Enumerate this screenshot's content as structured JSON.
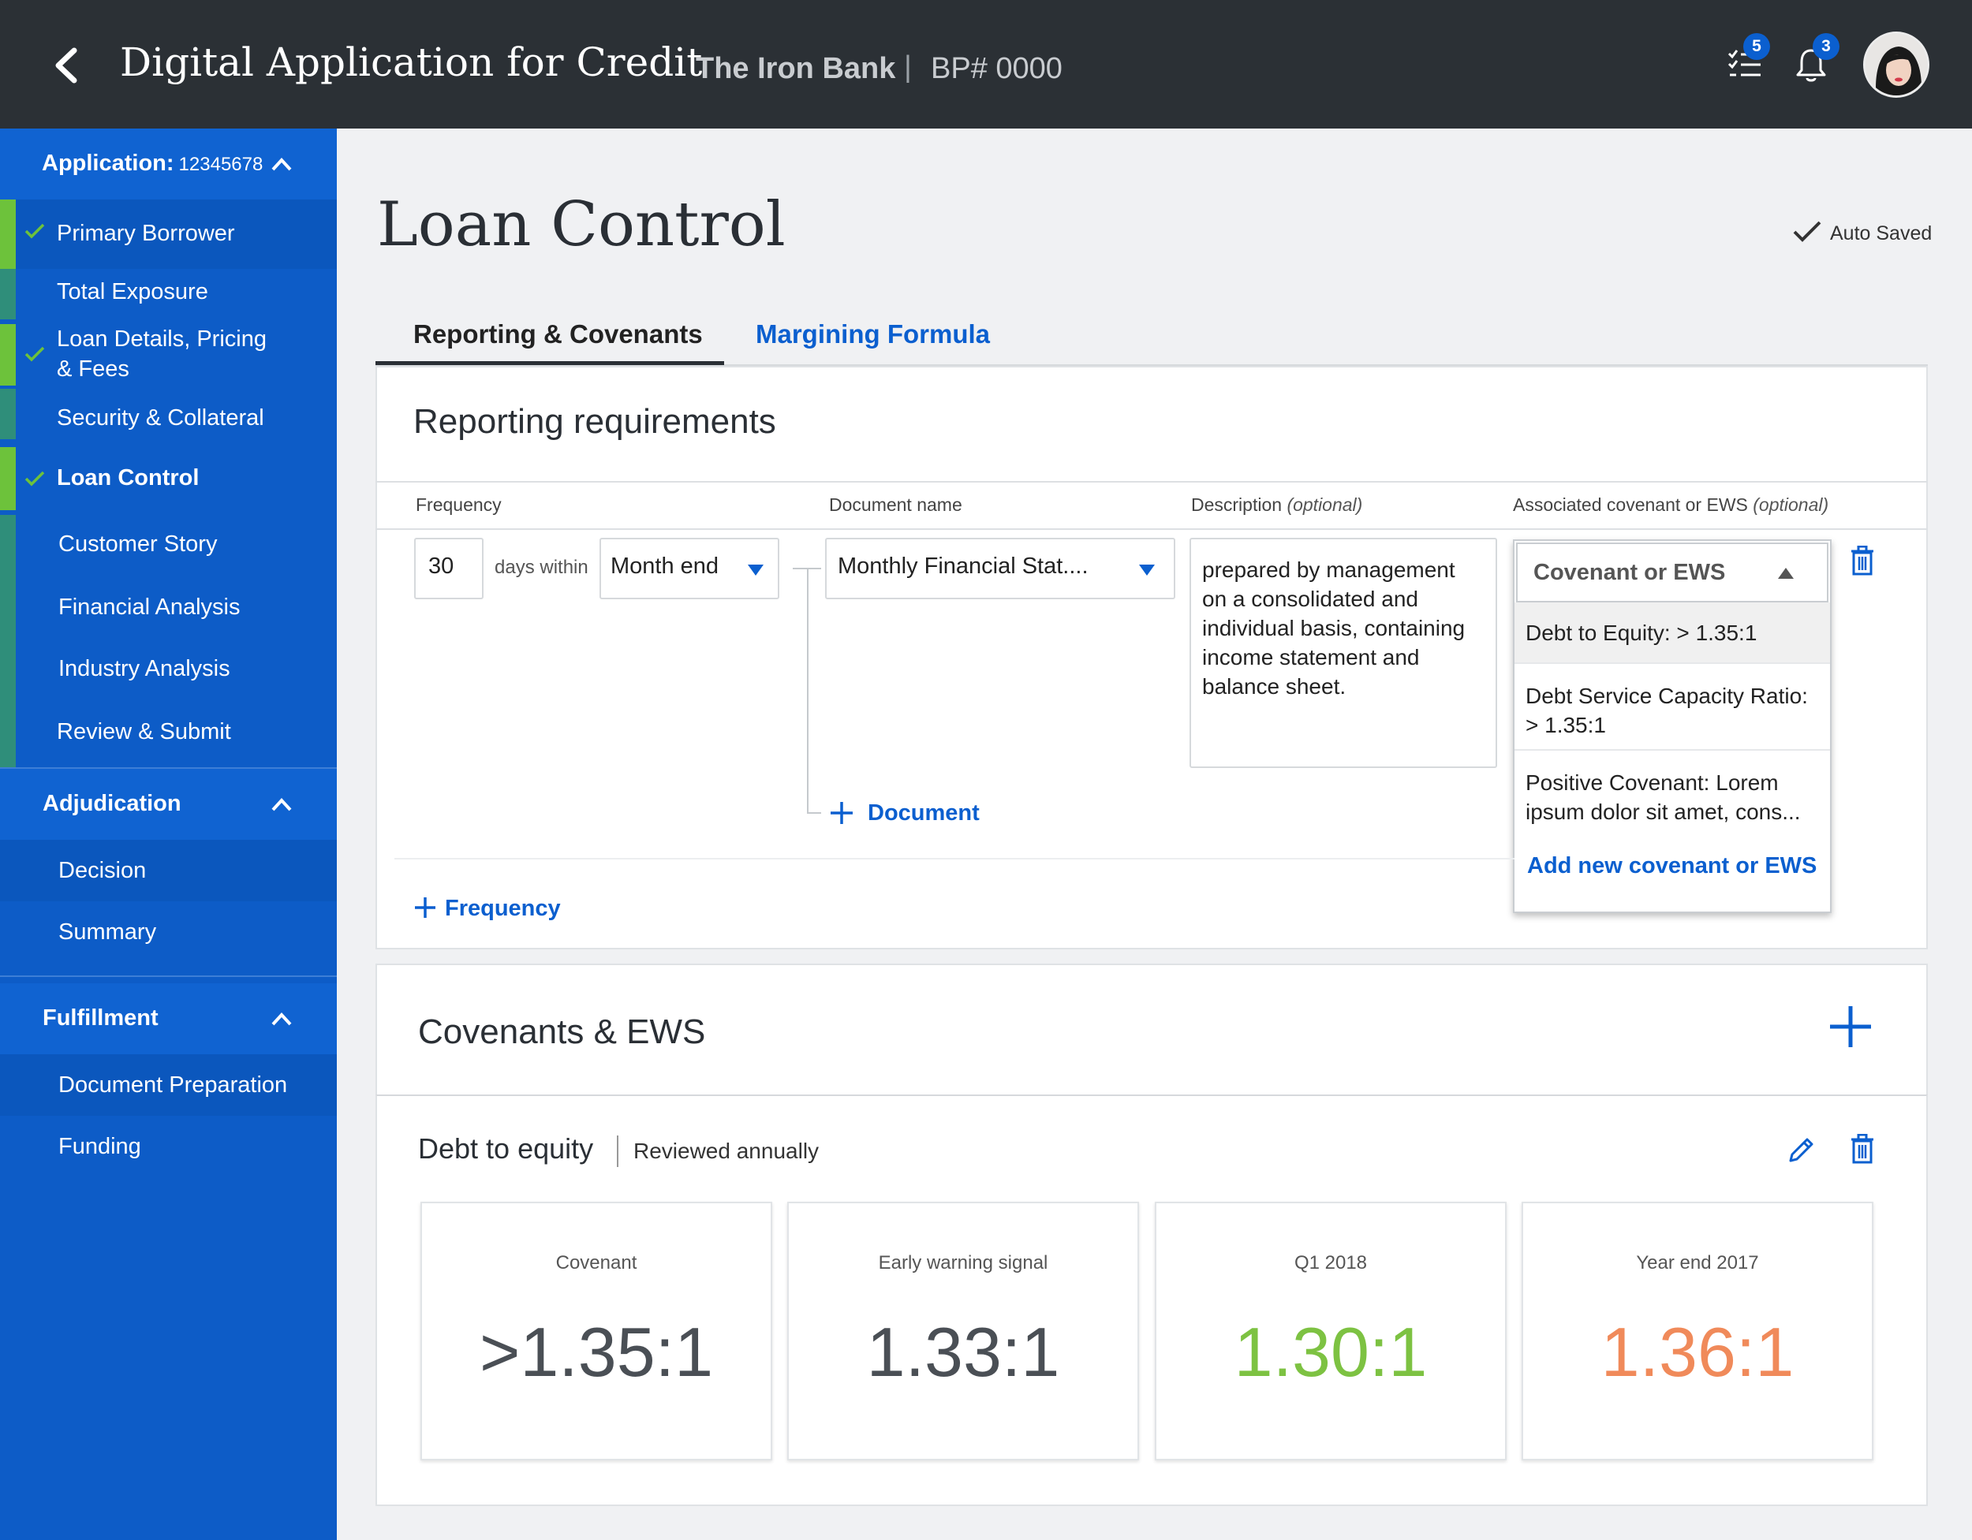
{
  "header": {
    "title": "Digital Application for Credit",
    "bank": "The Iron Bank",
    "separator": "|",
    "bp": "BP# 0000",
    "tasks_badge": "5",
    "notifications_badge": "3"
  },
  "sidebar": {
    "application": {
      "label": "Application:",
      "number": "12345678"
    },
    "app_items": [
      {
        "label": "Primary Borrower",
        "status": "done"
      },
      {
        "label": "Total Exposure",
        "status": "todo"
      },
      {
        "label_line1": "Loan Details, Pricing",
        "label_line2": "& Fees",
        "status": "done"
      },
      {
        "label": "Security & Collateral",
        "status": "todo"
      },
      {
        "label": "Loan Control",
        "status": "done",
        "active": true
      },
      {
        "label": "Customer Story",
        "status": "todo"
      },
      {
        "label": "Financial Analysis",
        "status": "todo"
      },
      {
        "label": "Industry Analysis",
        "status": "todo"
      },
      {
        "label": "Review & Submit",
        "status": "todo"
      }
    ],
    "adjudication": {
      "label": "Adjudication",
      "items": [
        "Decision",
        "Summary"
      ]
    },
    "fulfillment": {
      "label": "Fulfillment",
      "items": [
        "Document Preparation",
        "Funding"
      ]
    }
  },
  "main": {
    "title": "Loan Control",
    "autosave": "Auto Saved",
    "tabs": [
      {
        "label": "Reporting & Covenants",
        "active": true
      },
      {
        "label": "Margining Formula",
        "active": false
      }
    ],
    "reporting": {
      "title": "Reporting requirements",
      "columns": {
        "frequency": "Frequency",
        "document": "Document name",
        "description": "Description",
        "description_opt": "(optional)",
        "covenant": "Associated covenant or EWS",
        "covenant_opt": "(optional)"
      },
      "row": {
        "days": "30",
        "days_within": "days within",
        "period": "Month end",
        "document": "Monthly Financial Stat....",
        "description": "prepared by management on a consolidated and individual basis, containing income statement and balance sheet."
      },
      "covenant_dropdown": {
        "placeholder": "Covenant or EWS",
        "options": [
          "Debt to Equity:  > 1.35:1",
          "Debt Service Capacity Ratio: > 1.35:1",
          "Positive Covenant: Lorem ipsum dolor sit amet, cons..."
        ],
        "add_link": "Add new covenant or EWS"
      },
      "add_document": "Document",
      "add_frequency": "Frequency"
    },
    "covenants": {
      "title": "Covenants & EWS",
      "item": {
        "title": "Debt to equity",
        "review": "Reviewed annually",
        "metrics": [
          {
            "label": "Covenant",
            "value": ">1.35:1",
            "color": "#4a4f55"
          },
          {
            "label": "Early warning signal",
            "value": "1.33:1",
            "color": "#4a4f55"
          },
          {
            "label": "Q1 2018",
            "value": "1.30:1",
            "color": "#7dc242"
          },
          {
            "label": "Year end 2017",
            "value": "1.36:1",
            "color": "#f08a5a"
          }
        ]
      }
    }
  },
  "colors": {
    "header_bg": "#2b3035",
    "sidebar_bg": "#0d5cc7",
    "accent": "#0b5fcf",
    "done_green": "#6dc23b",
    "todo_teal": "#2f8e7a"
  }
}
